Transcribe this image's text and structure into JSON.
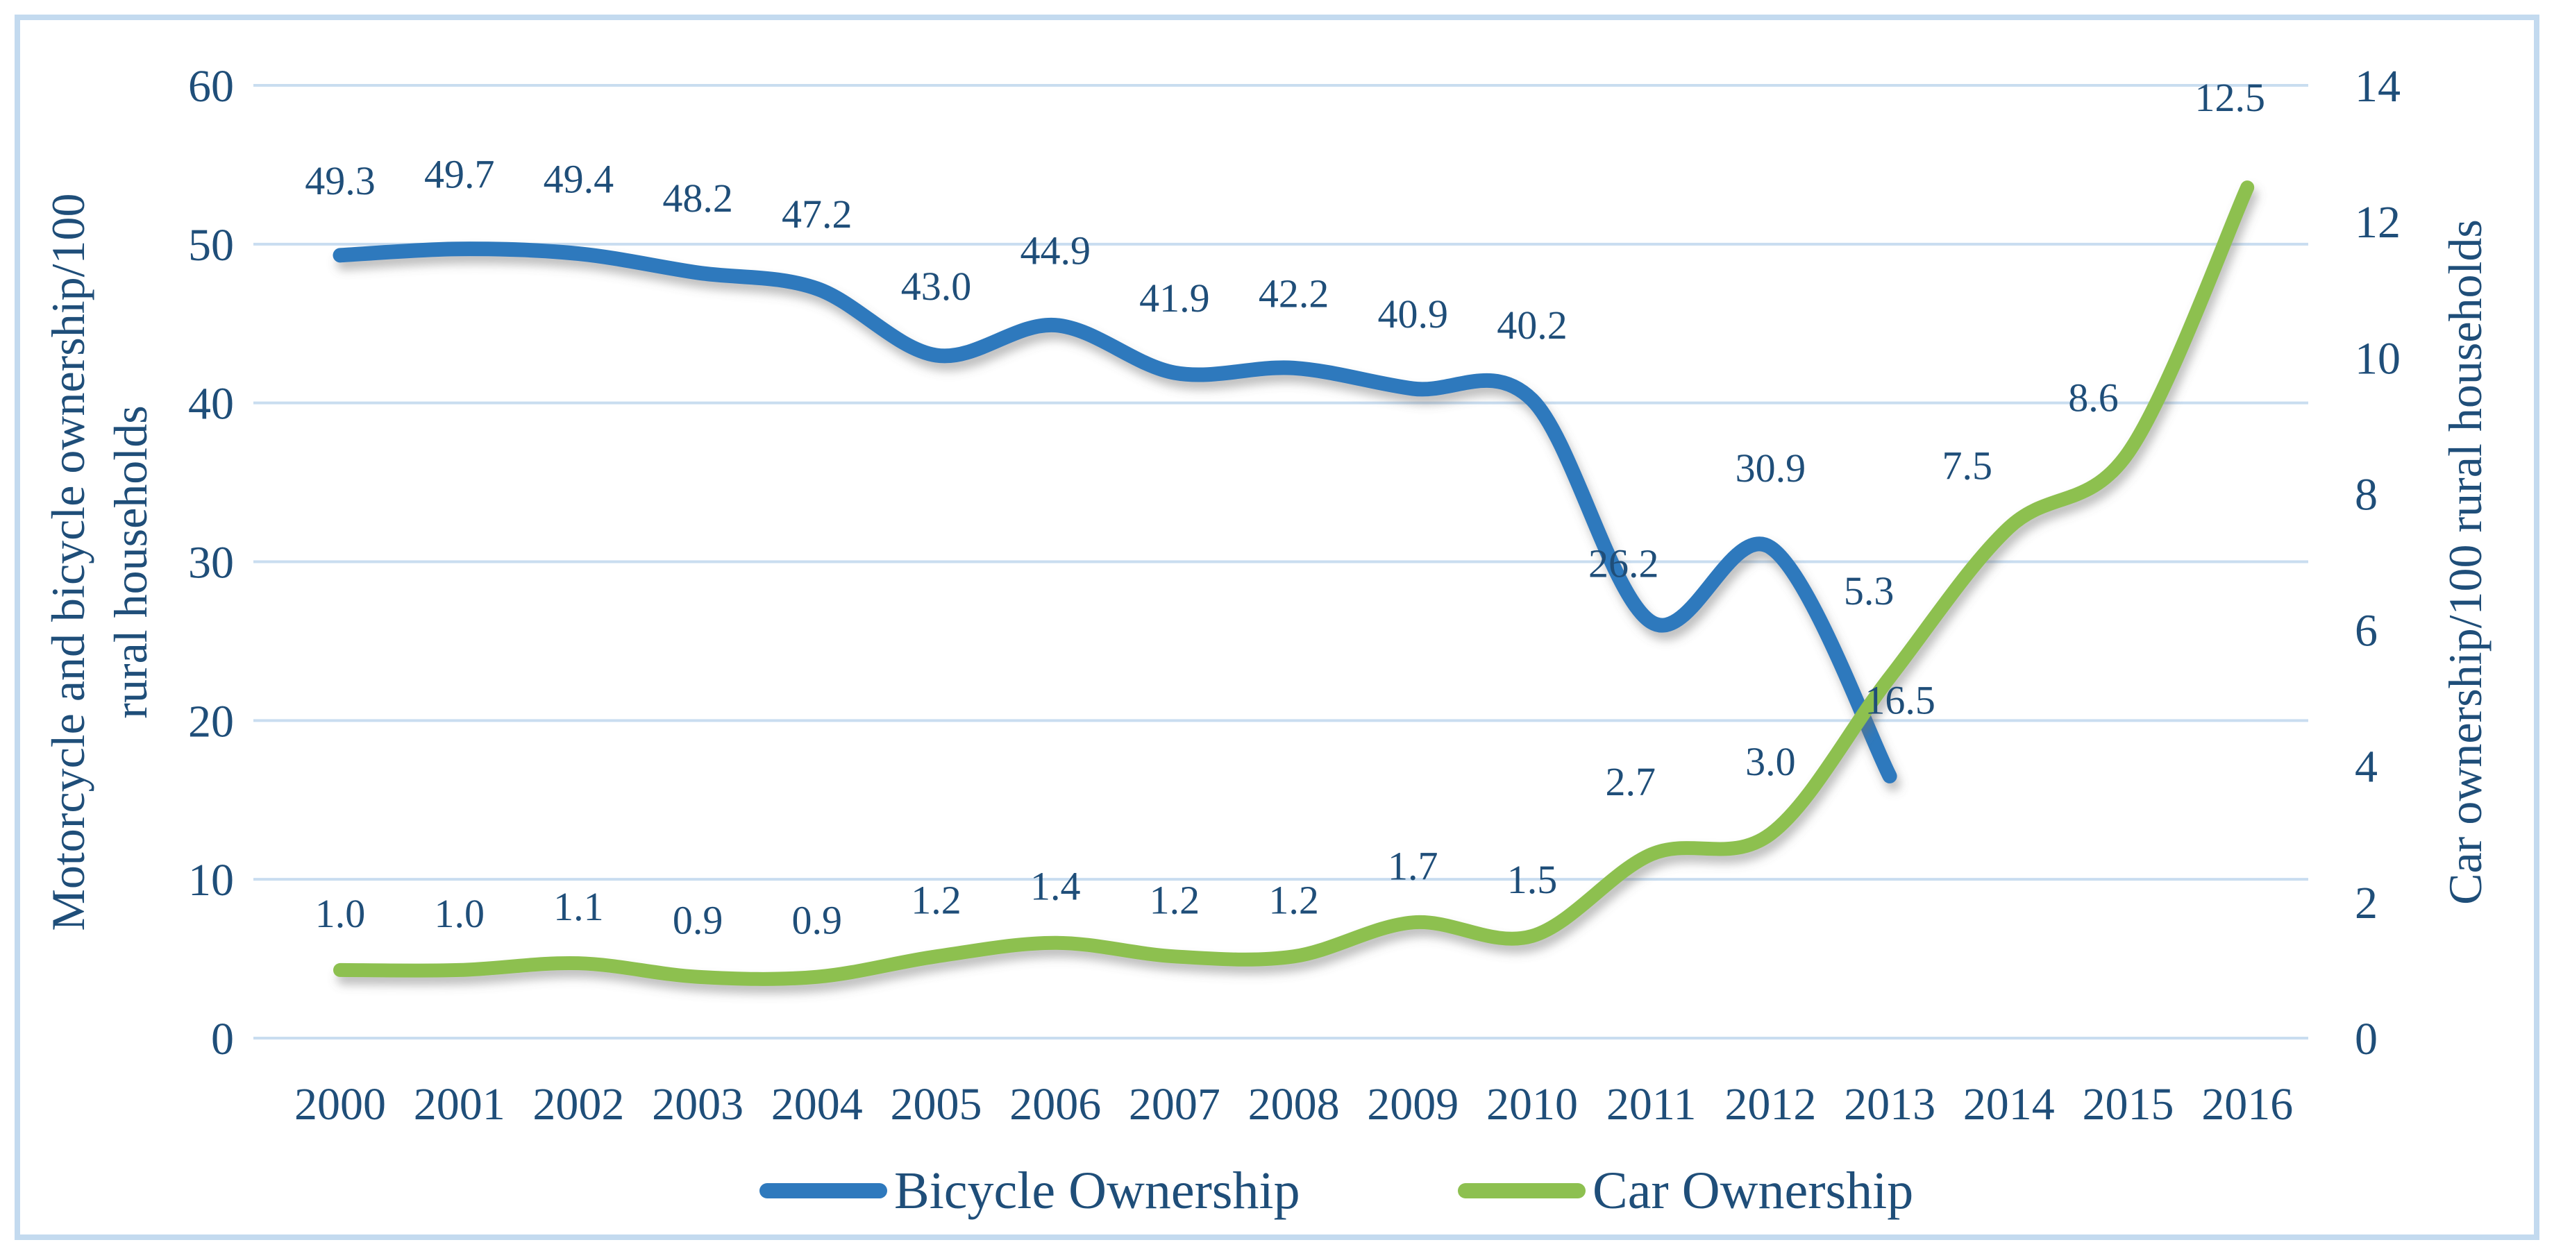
{
  "chart_data": {
    "type": "line",
    "title": "",
    "categories": [
      "2000",
      "2001",
      "2002",
      "2003",
      "2004",
      "2005",
      "2006",
      "2007",
      "2008",
      "2009",
      "2010",
      "2011",
      "2012",
      "2013",
      "2014",
      "2015",
      "2016"
    ],
    "series": [
      {
        "name": "Bicycle Ownership",
        "axis": "left",
        "color": "#2E79BD",
        "values": [
          49.3,
          49.7,
          49.4,
          48.2,
          47.2,
          43.0,
          44.9,
          41.9,
          42.2,
          40.9,
          40.2,
          26.2,
          30.9,
          16.5
        ],
        "labels": [
          "49.3",
          "49.7",
          "49.4",
          "48.2",
          "47.2",
          "43.0",
          "44.9",
          "41.9",
          "42.2",
          "40.9",
          "40.2",
          "26.2",
          "30.9",
          "16.5"
        ]
      },
      {
        "name": "Car Ownership",
        "axis": "right",
        "color": "#8DC050",
        "values": [
          1.0,
          1.0,
          1.1,
          0.9,
          0.9,
          1.2,
          1.4,
          1.2,
          1.2,
          1.7,
          1.5,
          2.7,
          3.0,
          5.3,
          7.5,
          8.6,
          12.5
        ],
        "labels": [
          "1.0",
          "1.0",
          "1.1",
          "0.9",
          "0.9",
          "1.2",
          "1.4",
          "1.2",
          "1.2",
          "1.7",
          "1.5",
          "2.7",
          "3.0",
          "5.3",
          "7.5",
          "8.6",
          "12.5"
        ]
      }
    ],
    "left_axis": {
      "title_line1": "Motorcycle and bicycle ownership/100",
      "title_line2": "rural households",
      "min": 0,
      "max": 60,
      "step": 10,
      "tick_labels": [
        "60",
        "50",
        "40",
        "30",
        "20",
        "10",
        "0"
      ]
    },
    "right_axis": {
      "title": "Car ownership/100 rural households",
      "min": 0,
      "max": 14,
      "step": 2,
      "tick_labels": [
        "14",
        "12",
        "10",
        "8",
        "6",
        "4",
        "2",
        "0"
      ]
    },
    "grid": true,
    "legend_position": "bottom",
    "colors": {
      "text": "#1F4E79",
      "gridline": "#C9DDF0",
      "frame": "#C3DAEF",
      "bicycle_line": "#2E79BD",
      "car_line": "#8DC050"
    }
  }
}
